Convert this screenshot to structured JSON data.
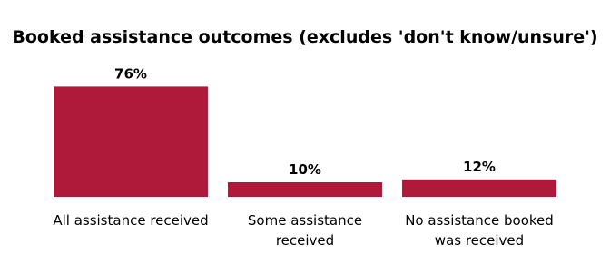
{
  "chart_data": {
    "type": "bar",
    "title": "Booked assistance outcomes (excludes 'don't know/unsure')",
    "categories": [
      "All assistance received",
      "Some assistance received",
      "No assistance booked was received"
    ],
    "values": [
      76,
      10,
      12
    ],
    "value_labels": [
      "76%",
      "10%",
      "12%"
    ],
    "color": "#b01a3a"
  }
}
